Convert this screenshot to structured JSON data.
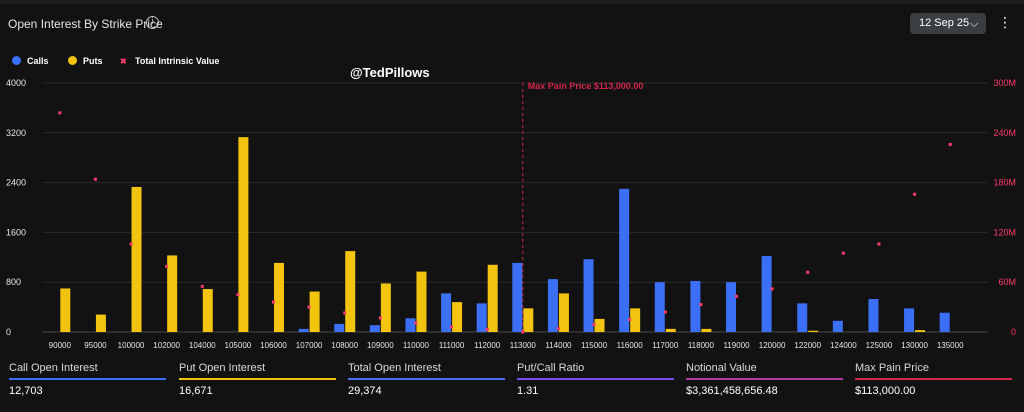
{
  "header": {
    "title": "Open Interest By Strike Price",
    "info_icon": "info-icon",
    "date_selector": "12 Sep 25",
    "chevron_icon": "chevron-down-icon",
    "menu_icon": "kebab-menu-icon"
  },
  "watermark": "@TedPillows",
  "colors": {
    "calls": "#3b6ff5",
    "puts": "#f2c40f",
    "intrinsic": "#ff3b6b",
    "maxpain": "#d4264b",
    "background": "#121212"
  },
  "chart_data": {
    "type": "bar",
    "legend": [
      "Calls",
      "Puts",
      "Total Intrinsic Value"
    ],
    "categories": [
      "90000",
      "95000",
      "100000",
      "102000",
      "104000",
      "105000",
      "106000",
      "107000",
      "108000",
      "109000",
      "110000",
      "111000",
      "112000",
      "113000",
      "114000",
      "115000",
      "116000",
      "117000",
      "118000",
      "119000",
      "120000",
      "122000",
      "124000",
      "125000",
      "130000",
      "135000"
    ],
    "series": [
      {
        "name": "Calls",
        "values": [
          0,
          0,
          0,
          0,
          0,
          0,
          0,
          50,
          130,
          110,
          220,
          620,
          460,
          1110,
          850,
          1170,
          2300,
          800,
          820,
          800,
          1220,
          460,
          180,
          530,
          380,
          310
        ]
      },
      {
        "name": "Puts",
        "values": [
          700,
          280,
          2330,
          1230,
          690,
          3130,
          1110,
          650,
          1300,
          780,
          970,
          480,
          1080,
          380,
          620,
          210,
          380,
          50,
          50,
          0,
          0,
          20,
          0,
          0,
          30,
          0
        ]
      },
      {
        "name": "Total Intrinsic Value",
        "axis": "right",
        "values": [
          264,
          184,
          106,
          79,
          55,
          45,
          36,
          30,
          23,
          17,
          11,
          6,
          3,
          0,
          4,
          9,
          15,
          24,
          33,
          43,
          52,
          72,
          95,
          106,
          166,
          226
        ]
      }
    ],
    "y_left": {
      "min": 0,
      "max": 4000,
      "ticks": [
        "0",
        "800",
        "1600",
        "2400",
        "3200",
        "4000"
      ]
    },
    "y_right": {
      "min": 0,
      "max": 300,
      "ticks": [
        "0",
        "60M",
        "120M",
        "180M",
        "240M",
        "300M"
      ]
    },
    "marker": {
      "category": "113000",
      "label": "Max Pain Price $113,000.00"
    }
  },
  "stats": [
    {
      "label": "Call Open Interest",
      "value": "12,703",
      "color": "#3b6ff5"
    },
    {
      "label": "Put Open Interest",
      "value": "16,671",
      "color": "#f2c40f"
    },
    {
      "label": "Total Open Interest",
      "value": "29,374",
      "color": "#4a6cf0"
    },
    {
      "label": "Put/Call Ratio",
      "value": "1.31",
      "color": "#7b4de8"
    },
    {
      "label": "Notional Value",
      "value": "$3,361,458,656.48",
      "color": "#b03aa8"
    },
    {
      "label": "Max Pain Price",
      "value": "$113,000.00",
      "color": "#d4264b"
    }
  ]
}
